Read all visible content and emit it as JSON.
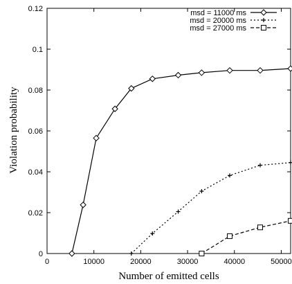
{
  "chart_data": {
    "type": "line",
    "xlabel": "Number of emitted cells",
    "ylabel": "Violation probability",
    "xlim": [
      0,
      52000
    ],
    "ylim": [
      0,
      0.12
    ],
    "xticks": [
      0,
      10000,
      20000,
      30000,
      40000,
      50000
    ],
    "yticks": [
      0,
      0.02,
      0.04,
      0.06,
      0.08,
      0.1,
      0.12
    ],
    "xtick_labels": [
      "0",
      "10000",
      "20000",
      "30000",
      "40000",
      "50000"
    ],
    "ytick_labels": [
      "0",
      "0.02",
      "0.04",
      "0.06",
      "0.08",
      "0.1",
      "0.12"
    ],
    "grid": false,
    "legend_position": "top-right",
    "series": [
      {
        "name": "msd = 11000 ms",
        "line_style": "solid",
        "marker": "diamond",
        "x": [
          5300,
          7700,
          10500,
          14500,
          18000,
          22500,
          28000,
          33000,
          39000,
          45500,
          52000
        ],
        "y": [
          0,
          0.0238,
          0.0565,
          0.0708,
          0.0808,
          0.0855,
          0.0873,
          0.0885,
          0.0896,
          0.0896,
          0.0905
        ]
      },
      {
        "name": "msd = 20000 ms",
        "line_style": "dotted",
        "marker": "plus",
        "x": [
          18000,
          22500,
          28000,
          33000,
          39000,
          45500,
          52000
        ],
        "y": [
          0,
          0.0098,
          0.0205,
          0.0305,
          0.0382,
          0.0432,
          0.0445
        ]
      },
      {
        "name": "msd = 27000 ms",
        "line_style": "dashed",
        "marker": "square",
        "x": [
          33000,
          39000,
          45500,
          52000
        ],
        "y": [
          0,
          0.0085,
          0.0128,
          0.016
        ]
      }
    ]
  }
}
